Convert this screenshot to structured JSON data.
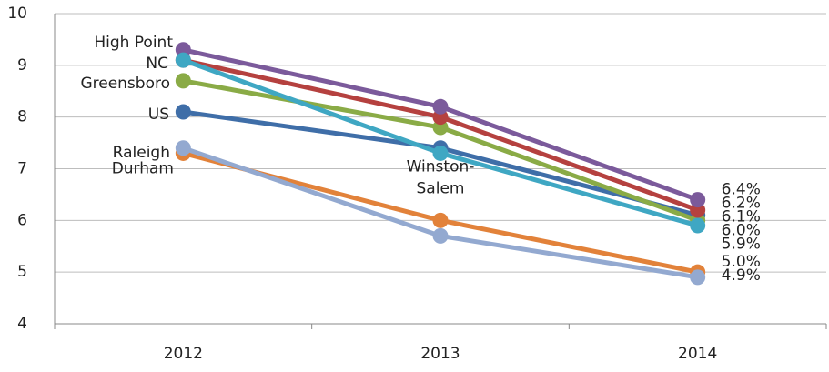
{
  "chart_data": {
    "type": "line",
    "categories": [
      "2012",
      "2013",
      "2014"
    ],
    "ylim": [
      4,
      10
    ],
    "yticks": [
      4,
      5,
      6,
      7,
      8,
      9,
      10
    ],
    "grid": true,
    "series": [
      {
        "name": "US",
        "color": "#3f6ea8",
        "values": [
          8.1,
          7.4,
          6.1
        ],
        "value_labels": [
          null,
          null,
          "6.1%"
        ]
      },
      {
        "name": "Durham",
        "color": "#e2823a",
        "values": [
          7.3,
          6.0,
          5.0
        ],
        "value_labels": [
          null,
          null,
          "5.0%"
        ]
      },
      {
        "name": "Raleigh",
        "color": "#93a9d0",
        "values": [
          7.4,
          5.7,
          4.9
        ],
        "value_labels": [
          null,
          null,
          "4.9%"
        ]
      },
      {
        "name": "Greensboro",
        "color": "#8aab46",
        "values": [
          8.7,
          7.8,
          6.0
        ],
        "value_labels": [
          null,
          null,
          "6.0%"
        ]
      },
      {
        "name": "NC",
        "color": "#b5413f",
        "values": [
          9.1,
          8.0,
          6.2
        ],
        "value_labels": [
          null,
          null,
          "6.2%"
        ]
      },
      {
        "name": "High Point",
        "color": "#7b5a9b",
        "values": [
          9.3,
          8.2,
          6.4
        ],
        "value_labels": [
          null,
          null,
          "6.4%"
        ]
      },
      {
        "name": "Winston-Salem",
        "color": "#3fa7c3",
        "values": [
          9.1,
          7.3,
          5.9
        ],
        "value_labels": [
          null,
          null,
          "5.9%"
        ]
      }
    ]
  }
}
